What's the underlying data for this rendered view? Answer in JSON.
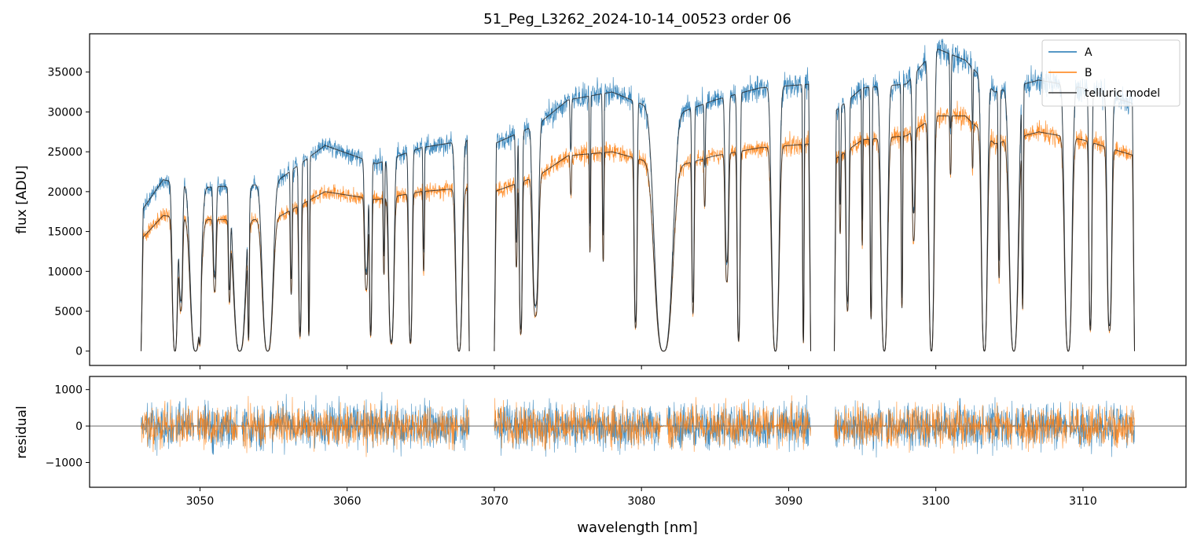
{
  "chart_data": [
    {
      "type": "line",
      "panel": "main",
      "title": "51_Peg_L3262_2024-10-14_00523  order 06",
      "xlabel": "",
      "ylabel": "flux [ADU]",
      "xlim": [
        3042.5,
        3117
      ],
      "ylim": [
        -1800,
        39800
      ],
      "yticks": [
        0,
        5000,
        10000,
        15000,
        20000,
        25000,
        30000,
        35000
      ],
      "ytick_labels": [
        "0",
        "5000",
        "10000",
        "15000",
        "20000",
        "25000",
        "30000",
        "35000"
      ],
      "xticks": [
        3050,
        3060,
        3070,
        3080,
        3090,
        3100,
        3110
      ],
      "segments": [
        [
          3046.0,
          3068.3
        ],
        [
          3070.0,
          3091.5
        ],
        [
          3093.1,
          3113.5
        ]
      ],
      "continuum_A_anchors": [
        [
          3046,
          17500
        ],
        [
          3047.5,
          21500
        ],
        [
          3050,
          20500
        ],
        [
          3055,
          21000
        ],
        [
          3058.5,
          25800
        ],
        [
          3062,
          23500
        ],
        [
          3065,
          25500
        ],
        [
          3068.3,
          26500
        ],
        [
          3070,
          26000
        ],
        [
          3073,
          28500
        ],
        [
          3075,
          31500
        ],
        [
          3078,
          32500
        ],
        [
          3082,
          29500
        ],
        [
          3085,
          31500
        ],
        [
          3088,
          33000
        ],
        [
          3091.5,
          33500
        ],
        [
          3093.1,
          30000
        ],
        [
          3095,
          33000
        ],
        [
          3098,
          33500
        ],
        [
          3100,
          38000
        ],
        [
          3102,
          36500
        ],
        [
          3104,
          32500
        ],
        [
          3107,
          34000
        ],
        [
          3110,
          33000
        ],
        [
          3113.5,
          31000
        ]
      ],
      "continuum_B_anchors": [
        [
          3046,
          14000
        ],
        [
          3047.5,
          17000
        ],
        [
          3050,
          16500
        ],
        [
          3055,
          16500
        ],
        [
          3058.5,
          20000
        ],
        [
          3062,
          19000
        ],
        [
          3065,
          20000
        ],
        [
          3068.3,
          20500
        ],
        [
          3070,
          20000
        ],
        [
          3073,
          22000
        ],
        [
          3075,
          24500
        ],
        [
          3078,
          25000
        ],
        [
          3082,
          23000
        ],
        [
          3085,
          24500
        ],
        [
          3088,
          25500
        ],
        [
          3091.5,
          26000
        ],
        [
          3093.1,
          24000
        ],
        [
          3095,
          26500
        ],
        [
          3098,
          27000
        ],
        [
          3100,
          29500
        ],
        [
          3102,
          29500
        ],
        [
          3104,
          26000
        ],
        [
          3107,
          27500
        ],
        [
          3110,
          26500
        ],
        [
          3113.5,
          24500
        ]
      ],
      "absorption_lines": [
        [
          3048.3,
          0.18,
          1
        ],
        [
          3048.7,
          0.12,
          0.7
        ],
        [
          3049.7,
          0.35,
          1
        ],
        [
          3050.0,
          0.06,
          0.8
        ],
        [
          3051.0,
          0.1,
          0.55
        ],
        [
          3052.0,
          0.07,
          0.6
        ],
        [
          3052.7,
          0.4,
          1
        ],
        [
          3053.3,
          0.05,
          0.9
        ],
        [
          3054.6,
          0.35,
          1
        ],
        [
          3056.2,
          0.06,
          0.6
        ],
        [
          3056.8,
          0.09,
          0.9
        ],
        [
          3057.4,
          0.05,
          0.9
        ],
        [
          3061.3,
          0.12,
          0.6
        ],
        [
          3061.6,
          0.08,
          0.9
        ],
        [
          3062.5,
          0.05,
          0.5
        ],
        [
          3063.0,
          0.18,
          0.95
        ],
        [
          3064.3,
          0.12,
          0.95
        ],
        [
          3065.2,
          0.05,
          0.5
        ],
        [
          3067.6,
          0.22,
          1
        ],
        [
          3071.5,
          0.06,
          0.5
        ],
        [
          3071.8,
          0.1,
          0.9
        ],
        [
          3072.8,
          0.2,
          0.8
        ],
        [
          3075.2,
          0.05,
          0.2
        ],
        [
          3076.5,
          0.04,
          0.5
        ],
        [
          3077.4,
          0.05,
          0.55
        ],
        [
          3079.6,
          0.1,
          0.88
        ],
        [
          3081.5,
          0.6,
          1
        ],
        [
          3083.5,
          0.08,
          0.8
        ],
        [
          3084.3,
          0.05,
          0.25
        ],
        [
          3085.8,
          0.12,
          0.65
        ],
        [
          3086.6,
          0.1,
          0.95
        ],
        [
          3089.1,
          0.25,
          1
        ],
        [
          3091.0,
          0.05,
          0.96
        ],
        [
          3093.5,
          0.05,
          0.4
        ],
        [
          3094.0,
          0.1,
          0.8
        ],
        [
          3095.0,
          0.04,
          0.5
        ],
        [
          3095.6,
          0.06,
          0.85
        ],
        [
          3096.5,
          0.22,
          1
        ],
        [
          3097.7,
          0.05,
          0.8
        ],
        [
          3098.5,
          0.1,
          0.5
        ],
        [
          3099.7,
          0.18,
          1
        ],
        [
          3101.0,
          0.05,
          0.25
        ],
        [
          3102.5,
          0.04,
          0.2
        ],
        [
          3103.3,
          0.2,
          1
        ],
        [
          3104.3,
          0.06,
          0.65
        ],
        [
          3105.3,
          0.3,
          1
        ],
        [
          3105.9,
          0.05,
          0.8
        ],
        [
          3109.0,
          0.25,
          1
        ],
        [
          3110.5,
          0.1,
          0.9
        ],
        [
          3111.8,
          0.16,
          0.9
        ]
      ],
      "series": [
        {
          "name": "A",
          "color": "#1f77b4"
        },
        {
          "name": "B",
          "color": "#ff7f0e"
        },
        {
          "name": "telluric model",
          "color": "#000000"
        }
      ],
      "legend": "top-right"
    },
    {
      "type": "line",
      "panel": "residual",
      "xlabel": "wavelength [nm]",
      "ylabel": "residual",
      "xlim": [
        3042.5,
        3117
      ],
      "ylim": [
        -1680,
        1360
      ],
      "yticks": [
        -1000,
        0,
        1000
      ],
      "ytick_labels": [
        "−1000",
        "0",
        "1000"
      ],
      "xticks": [
        3050,
        3060,
        3070,
        3080,
        3090,
        3100,
        3110
      ],
      "xtick_labels": [
        "3050",
        "3060",
        "3070",
        "3080",
        "3090",
        "3100",
        "3110"
      ],
      "zero_line": 0,
      "typical_amplitude": 450,
      "series": [
        {
          "name": "A",
          "color": "#1f77b4"
        },
        {
          "name": "B",
          "color": "#ff7f0e"
        }
      ]
    }
  ]
}
